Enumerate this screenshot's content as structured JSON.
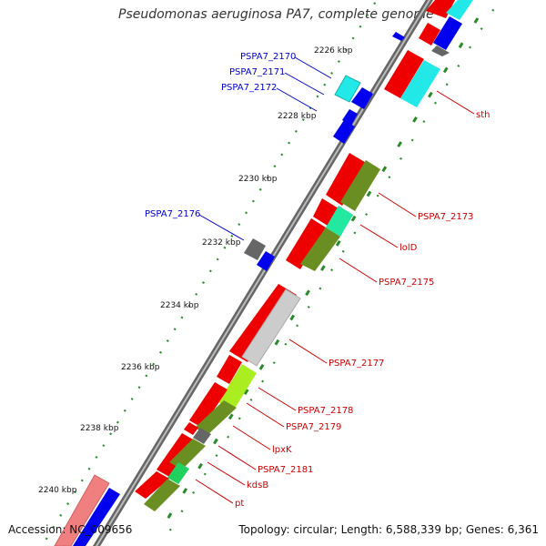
{
  "title": "Pseudomonas aeruginosa PA7, complete genome",
  "footer": {
    "accession": "Accession: NC_009656",
    "topology": "Topology: circular; Length: 6,588,339 bp; Genes: 6,361"
  },
  "ticks": [
    {
      "label": "2226 kbp",
      "pos": 2226
    },
    {
      "label": "2228 kbp",
      "pos": 2228
    },
    {
      "label": "2230 kbp",
      "pos": 2230
    },
    {
      "label": "2232 kbp",
      "pos": 2232
    },
    {
      "label": "2234 kbp",
      "pos": 2234
    },
    {
      "label": "2236 kbp",
      "pos": 2236
    },
    {
      "label": "2238 kbp",
      "pos": 2238
    },
    {
      "label": "2240 kbp",
      "pos": 2240
    }
  ],
  "forward_labels": [
    {
      "text": "PSPA7_2170"
    },
    {
      "text": "PSPA7_2171"
    },
    {
      "text": "PSPA7_2172"
    },
    {
      "text": "PSPA7_2176"
    }
  ],
  "reverse_labels": [
    {
      "text": "sth"
    },
    {
      "text": "PSPA7_2173"
    },
    {
      "text": "lolD"
    },
    {
      "text": "PSPA7_2175"
    },
    {
      "text": "PSPA7_2177"
    },
    {
      "text": "PSPA7_2178"
    },
    {
      "text": "PSPA7_2179"
    },
    {
      "text": "lpxK"
    },
    {
      "text": "PSPA7_2181"
    },
    {
      "text": "kdsB"
    },
    {
      "text": "pt"
    }
  ],
  "colors": {
    "backbone": "#888888",
    "forward_label": "#0000cc",
    "reverse_label": "#cc0000",
    "gene": "#ee0000",
    "gene_forward": "#0000ee",
    "tick_dot": "#2a8a2a"
  }
}
